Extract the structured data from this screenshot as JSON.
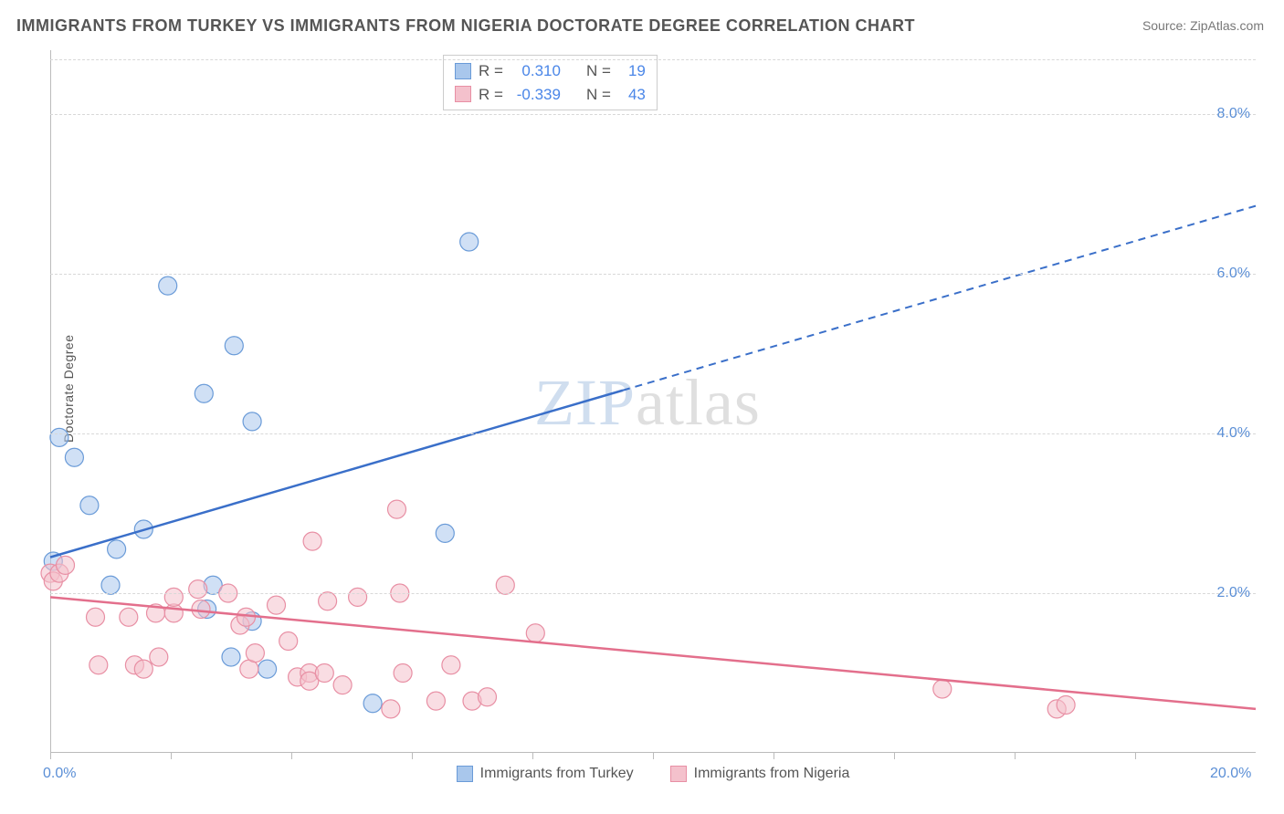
{
  "title": "IMMIGRANTS FROM TURKEY VS IMMIGRANTS FROM NIGERIA DOCTORATE DEGREE CORRELATION CHART",
  "source": "Source: ZipAtlas.com",
  "ylabel": "Doctorate Degree",
  "watermark": {
    "part1": "ZIP",
    "part2": "atlas"
  },
  "chart": {
    "type": "scatter",
    "background_color": "#ffffff",
    "grid_color": "#d8d8d8",
    "axis_color": "#bbbbbb",
    "xlim": [
      0,
      20
    ],
    "ylim": [
      0,
      8.8
    ],
    "ytick_step": 2,
    "x_ticks_pct": [
      0,
      10,
      20,
      30,
      40,
      50,
      60,
      70,
      80,
      90
    ],
    "x_labels": [
      {
        "pos_pct": 0,
        "text": "0.0%"
      },
      {
        "pos_pct": 100,
        "text": "20.0%"
      }
    ],
    "y_labels": [
      {
        "val": 2.0,
        "text": "2.0%"
      },
      {
        "val": 4.0,
        "text": "4.0%"
      },
      {
        "val": 6.0,
        "text": "6.0%"
      },
      {
        "val": 8.0,
        "text": "8.0%"
      }
    ],
    "marker_radius": 10,
    "marker_opacity": 0.55,
    "series": [
      {
        "name": "Immigrants from Turkey",
        "fill": "#a9c7ec",
        "stroke": "#6a9bd8",
        "line_color": "#3a6fc9",
        "r_value": "0.310",
        "n_value": "19",
        "trend": {
          "x1": 0.0,
          "y1": 2.45,
          "x2": 20.0,
          "y2": 6.85,
          "solid_until_x": 9.5
        },
        "points": [
          [
            0.05,
            2.4
          ],
          [
            0.15,
            3.95
          ],
          [
            0.4,
            3.7
          ],
          [
            0.65,
            3.1
          ],
          [
            1.0,
            2.1
          ],
          [
            1.1,
            2.55
          ],
          [
            1.55,
            2.8
          ],
          [
            1.95,
            5.85
          ],
          [
            2.55,
            4.5
          ],
          [
            2.6,
            1.8
          ],
          [
            2.7,
            2.1
          ],
          [
            3.0,
            1.2
          ],
          [
            3.05,
            5.1
          ],
          [
            3.35,
            1.65
          ],
          [
            3.35,
            4.15
          ],
          [
            3.6,
            1.05
          ],
          [
            5.35,
            0.62
          ],
          [
            6.55,
            2.75
          ],
          [
            6.95,
            6.4
          ]
        ]
      },
      {
        "name": "Immigrants from Nigeria",
        "fill": "#f4c1cc",
        "stroke": "#e88fa4",
        "line_color": "#e36f8c",
        "r_value": "-0.339",
        "n_value": "43",
        "trend": {
          "x1": 0.0,
          "y1": 1.95,
          "x2": 20.0,
          "y2": 0.55,
          "solid_until_x": 20.0
        },
        "points": [
          [
            0.0,
            2.25
          ],
          [
            0.05,
            2.15
          ],
          [
            0.15,
            2.25
          ],
          [
            0.25,
            2.35
          ],
          [
            0.75,
            1.7
          ],
          [
            0.8,
            1.1
          ],
          [
            1.3,
            1.7
          ],
          [
            1.4,
            1.1
          ],
          [
            1.55,
            1.05
          ],
          [
            1.75,
            1.75
          ],
          [
            1.8,
            1.2
          ],
          [
            2.05,
            1.75
          ],
          [
            2.05,
            1.95
          ],
          [
            2.45,
            2.05
          ],
          [
            2.5,
            1.8
          ],
          [
            2.95,
            2.0
          ],
          [
            3.15,
            1.6
          ],
          [
            3.25,
            1.7
          ],
          [
            3.3,
            1.05
          ],
          [
            3.4,
            1.25
          ],
          [
            3.75,
            1.85
          ],
          [
            3.95,
            1.4
          ],
          [
            4.1,
            0.95
          ],
          [
            4.3,
            1.0
          ],
          [
            4.3,
            0.9
          ],
          [
            4.35,
            2.65
          ],
          [
            4.55,
            1.0
          ],
          [
            4.6,
            1.9
          ],
          [
            4.85,
            0.85
          ],
          [
            5.1,
            1.95
          ],
          [
            5.65,
            0.55
          ],
          [
            5.75,
            3.05
          ],
          [
            5.8,
            2.0
          ],
          [
            5.85,
            1.0
          ],
          [
            6.4,
            0.65
          ],
          [
            6.65,
            1.1
          ],
          [
            7.0,
            0.65
          ],
          [
            7.25,
            0.7
          ],
          [
            7.55,
            2.1
          ],
          [
            8.05,
            1.5
          ],
          [
            14.8,
            0.8
          ],
          [
            16.7,
            0.55
          ],
          [
            16.85,
            0.6
          ]
        ]
      }
    ]
  },
  "bottom_legend": [
    {
      "label": "Immigrants from Turkey",
      "fill": "#a9c7ec",
      "stroke": "#6a9bd8"
    },
    {
      "label": "Immigrants from Nigeria",
      "fill": "#f4c1cc",
      "stroke": "#e88fa4"
    }
  ],
  "label_fontsize": 14,
  "tick_fontsize": 16,
  "title_fontsize": 18
}
